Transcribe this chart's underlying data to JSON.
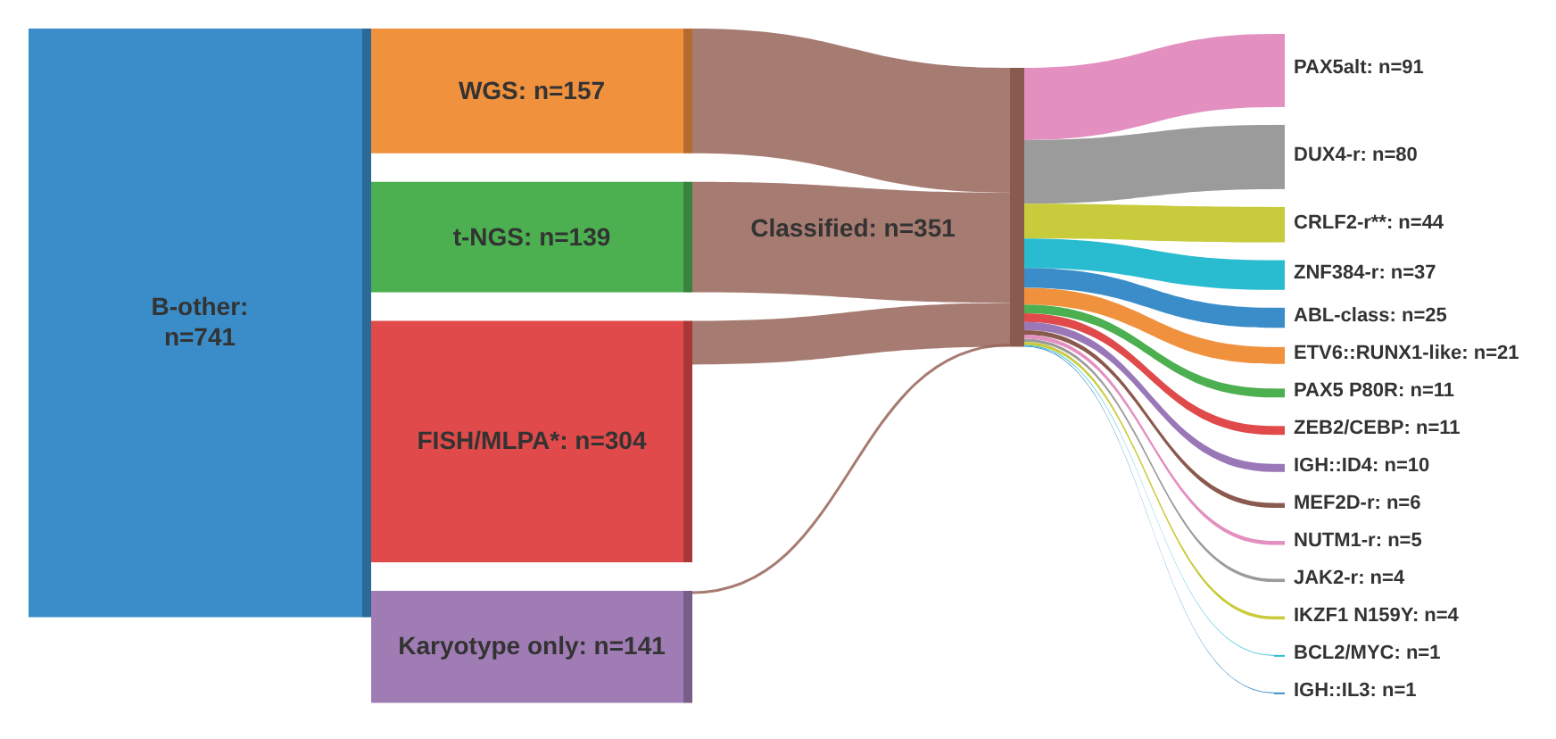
{
  "chart_data": {
    "type": "other",
    "categories": [
      "B-other",
      "WGS",
      "t-NGS",
      "FISH/MLPA*",
      "Karyotype only",
      "Classified",
      "PAX5alt",
      "DUX4-r",
      "CRLF2-r**",
      "ZNF384-r",
      "ABL-class",
      "ETV6::RUNX1-like",
      "PAX5 P80R",
      "ZEB2/CEBP",
      "IGH::ID4",
      "MEF2D-r",
      "NUTM1-r",
      "JAK2-r",
      "IKZF1 N159Y",
      "BCL2/MYC",
      "IGH::IL3"
    ],
    "series": [
      {
        "values": [
          741,
          null,
          null,
          null,
          null,
          null,
          null,
          null,
          null,
          null,
          null,
          null,
          null,
          null,
          null,
          null,
          null,
          null,
          null,
          null,
          null
        ],
        "value_labels": [
          ": n=741",
          null,
          null,
          null,
          null,
          null,
          null,
          null,
          null,
          null,
          null,
          null,
          null,
          null,
          null,
          null,
          null,
          null,
          null,
          null,
          null
        ],
        "colors": [
          "#3a8dc8",
          null,
          null,
          null,
          null,
          null,
          null,
          null,
          null,
          null,
          null,
          null,
          null,
          null,
          null,
          null,
          null,
          null,
          null,
          null,
          null
        ]
      },
      {
        "values": [
          null,
          157,
          139,
          304,
          141,
          null,
          null,
          null,
          null,
          null,
          null,
          null,
          null,
          null,
          null,
          null,
          null,
          null,
          null,
          null,
          null
        ],
        "value_labels": [
          null,
          ": n=157",
          ": n=139",
          ": n=304",
          ": n=141",
          null,
          null,
          null,
          null,
          null,
          null,
          null,
          null,
          null,
          null,
          null,
          null,
          null,
          null,
          null,
          null
        ],
        "colors": [
          null,
          "#f0913e",
          "#4caf50",
          "#e04a4a",
          "#a07cb4",
          null,
          null,
          null,
          null,
          null,
          null,
          null,
          null,
          null,
          null,
          null,
          null,
          null,
          null,
          null,
          null
        ]
      },
      {
        "values": [
          null,
          null,
          null,
          null,
          null,
          351,
          null,
          null,
          null,
          null,
          null,
          null,
          null,
          null,
          null,
          null,
          null,
          null,
          null,
          null,
          null
        ],
        "value_labels": [
          null,
          null,
          null,
          null,
          null,
          ": n=351",
          null,
          null,
          null,
          null,
          null,
          null,
          null,
          null,
          null,
          null,
          null,
          null,
          null,
          null,
          null
        ],
        "colors": [
          null,
          null,
          null,
          null,
          null,
          "#8b5a4e",
          null,
          null,
          null,
          null,
          null,
          null,
          null,
          null,
          null,
          null,
          null,
          null,
          null,
          null,
          null
        ]
      },
      {
        "values": [
          null,
          null,
          null,
          null,
          null,
          null,
          91,
          80,
          44,
          37,
          25,
          21,
          11,
          11,
          10,
          6,
          5,
          4,
          4,
          1,
          1
        ],
        "value_labels": [
          null,
          null,
          null,
          null,
          null,
          null,
          ": n=91",
          ": n=80",
          ": n=44",
          ": n=37",
          ": n=25",
          ": n=21",
          ": n=11",
          ": n=11",
          ": n=10",
          ": n=6",
          ": n=5",
          ": n=4",
          ": n=4",
          ": n=1",
          ": n=1"
        ],
        "colors": [
          null,
          null,
          null,
          null,
          null,
          null,
          "#e38fc0",
          "#9b9b9b",
          "#c8cb3c",
          "#29bcd0",
          "#3a8dc8",
          "#f0913e",
          "#4caf50",
          "#e04a4a",
          "#9a78b8",
          "#8b5a4e",
          "#e38fc0",
          "#9b9b9b",
          "#c8cb3c",
          "#29bcd0",
          "#3a8dc8"
        ]
      }
    ]
  }
}
